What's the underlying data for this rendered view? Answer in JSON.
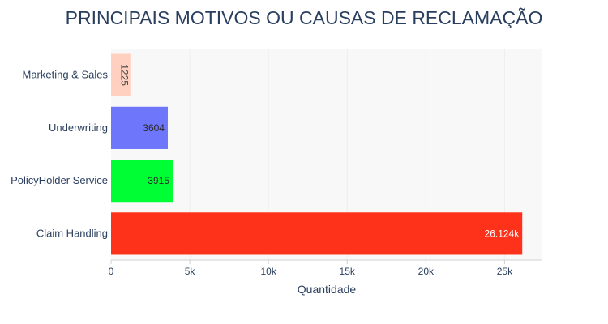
{
  "chart_data": {
    "type": "bar",
    "orientation": "horizontal",
    "title": "PRINCIPAIS MOTIVOS OU CAUSAS DE RECLAMAÇÃO",
    "xlabel": "Quantidade",
    "ylabel": "",
    "categories": [
      "Marketing & Sales",
      "Underwriting",
      "PolicyHolder Service",
      "Claim Handling"
    ],
    "values": [
      1225,
      3604,
      3915,
      26124
    ],
    "data_labels": [
      "1225",
      "3604",
      "3915",
      "26.124k"
    ],
    "colors": [
      "#ffd0c0",
      "#6e76fb",
      "#00fe35",
      "#fe321a"
    ],
    "xlim": [
      0,
      27400
    ],
    "x_ticks": [
      0,
      5000,
      10000,
      15000,
      20000,
      25000
    ],
    "x_tick_labels": [
      "0",
      "5k",
      "10k",
      "15k",
      "20k",
      "25k"
    ],
    "grid": true,
    "legend": "none"
  }
}
